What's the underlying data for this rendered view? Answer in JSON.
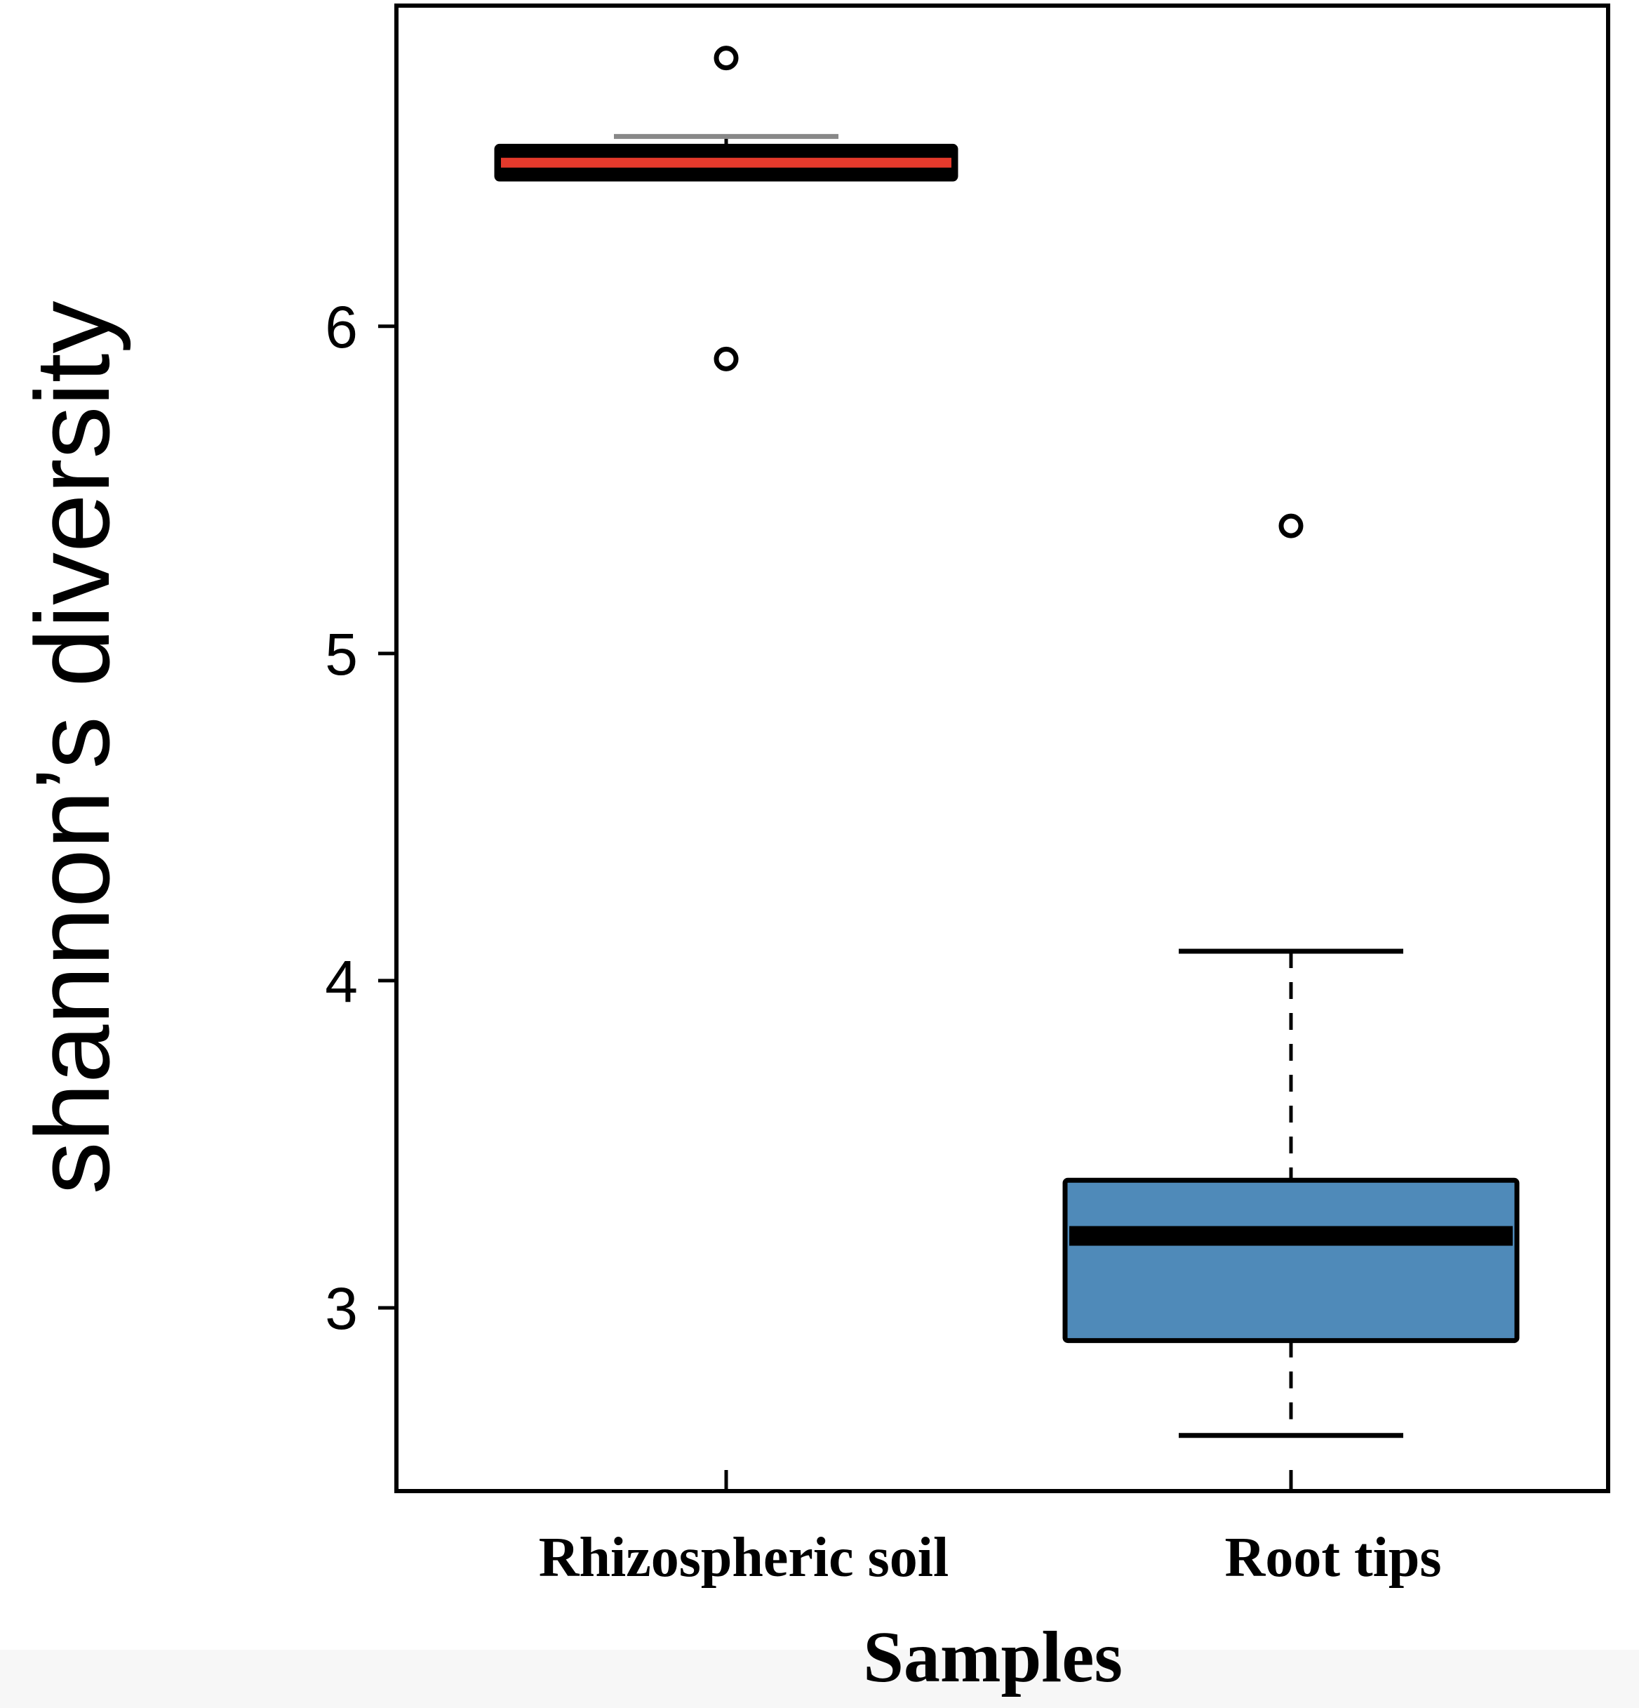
{
  "chart_data": {
    "type": "box",
    "title": "",
    "xlabel": "Samples",
    "ylabel": "shannon’s diversity",
    "ylim": [
      2.44,
      6.98
    ],
    "yticks": [
      3,
      4,
      5,
      6
    ],
    "categories": [
      "Rhizospheric soil",
      "Root tips"
    ],
    "boxes": [
      {
        "name": "Rhizospheric soil",
        "whisker_low": 6.45,
        "q1": 6.45,
        "median": 6.5,
        "q3": 6.55,
        "whisker_high": 6.58,
        "outliers": [
          6.82,
          5.9
        ],
        "fill": "#000000",
        "median_color": "#e53a2c"
      },
      {
        "name": "Root tips",
        "whisker_low": 2.61,
        "q1": 2.9,
        "median": 3.22,
        "q3": 3.39,
        "whisker_high": 4.09,
        "outliers": [
          5.39
        ],
        "fill": "#4f8ab9",
        "median_color": "#000000"
      }
    ]
  }
}
